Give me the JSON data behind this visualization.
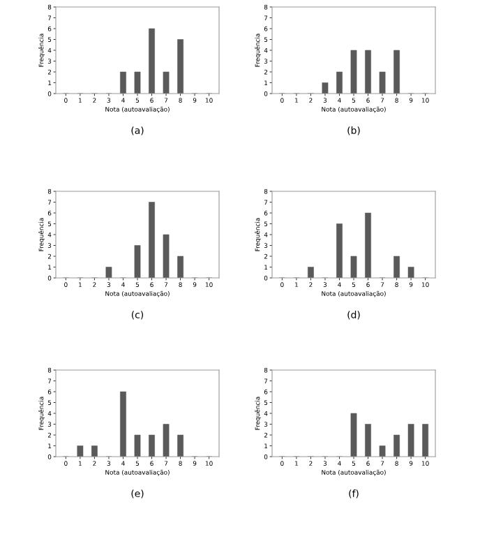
{
  "chart_data": [
    {
      "type": "bar",
      "categories": [
        "0",
        "1",
        "2",
        "3",
        "4",
        "5",
        "6",
        "7",
        "8",
        "9",
        "10"
      ],
      "values": [
        0,
        0,
        0,
        0,
        2,
        2,
        6,
        2,
        5,
        0,
        0
      ],
      "color": "#5a5a5a",
      "ylim": [
        0,
        8
      ],
      "yticks": [
        0,
        1,
        2,
        3,
        4,
        5,
        6,
        7,
        8
      ],
      "xlabel": "Nota (autoavaliação)",
      "ylabel": "Frequência",
      "annotations": [
        "(a)"
      ],
      "grid": false,
      "legend": false
    },
    {
      "type": "bar",
      "categories": [
        "0",
        "1",
        "2",
        "3",
        "4",
        "5",
        "6",
        "7",
        "8",
        "9",
        "10"
      ],
      "values": [
        0,
        0,
        0,
        1,
        2,
        4,
        4,
        2,
        4,
        0,
        0
      ],
      "color": "#5a5a5a",
      "ylim": [
        0,
        8
      ],
      "yticks": [
        0,
        1,
        2,
        3,
        4,
        5,
        6,
        7,
        8
      ],
      "xlabel": "Nota (autoavaliação)",
      "ylabel": "Frequência",
      "annotations": [
        "(b)"
      ],
      "grid": false,
      "legend": false
    },
    {
      "type": "bar",
      "categories": [
        "0",
        "1",
        "2",
        "3",
        "4",
        "5",
        "6",
        "7",
        "8",
        "9",
        "10"
      ],
      "values": [
        0,
        0,
        0,
        1,
        0,
        3,
        7,
        4,
        2,
        0,
        0
      ],
      "color": "#5a5a5a",
      "ylim": [
        0,
        8
      ],
      "yticks": [
        0,
        1,
        2,
        3,
        4,
        5,
        6,
        7,
        8
      ],
      "xlabel": "Nota (autoavaliação)",
      "ylabel": "Frequência",
      "annotations": [
        "(c)"
      ],
      "grid": false,
      "legend": false
    },
    {
      "type": "bar",
      "categories": [
        "0",
        "1",
        "2",
        "3",
        "4",
        "5",
        "6",
        "7",
        "8",
        "9",
        "10"
      ],
      "values": [
        0,
        0,
        1,
        0,
        5,
        2,
        6,
        0,
        2,
        1,
        0
      ],
      "color": "#5a5a5a",
      "ylim": [
        0,
        8
      ],
      "yticks": [
        0,
        1,
        2,
        3,
        4,
        5,
        6,
        7,
        8
      ],
      "xlabel": "Nota (autoavaliação)",
      "ylabel": "Frequência",
      "annotations": [
        "(d)"
      ],
      "grid": false,
      "legend": false
    },
    {
      "type": "bar",
      "categories": [
        "0",
        "1",
        "2",
        "3",
        "4",
        "5",
        "6",
        "7",
        "8",
        "9",
        "10"
      ],
      "values": [
        0,
        1,
        1,
        0,
        6,
        2,
        2,
        3,
        2,
        0,
        0
      ],
      "color": "#5a5a5a",
      "ylim": [
        0,
        8
      ],
      "yticks": [
        0,
        1,
        2,
        3,
        4,
        5,
        6,
        7,
        8
      ],
      "xlabel": "Nota (autoavaliação)",
      "ylabel": "Frequência",
      "annotations": [
        "(e)"
      ],
      "grid": false,
      "legend": false
    },
    {
      "type": "bar",
      "categories": [
        "0",
        "1",
        "2",
        "3",
        "4",
        "5",
        "6",
        "7",
        "8",
        "9",
        "10"
      ],
      "values": [
        0,
        0,
        0,
        0,
        0,
        4,
        3,
        1,
        2,
        3,
        3
      ],
      "color": "#5a5a5a",
      "ylim": [
        0,
        8
      ],
      "yticks": [
        0,
        1,
        2,
        3,
        4,
        5,
        6,
        7,
        8
      ],
      "xlabel": "Nota (autoavaliação)",
      "ylabel": "Frequência",
      "annotations": [
        "(f)"
      ],
      "grid": false,
      "legend": false
    }
  ]
}
